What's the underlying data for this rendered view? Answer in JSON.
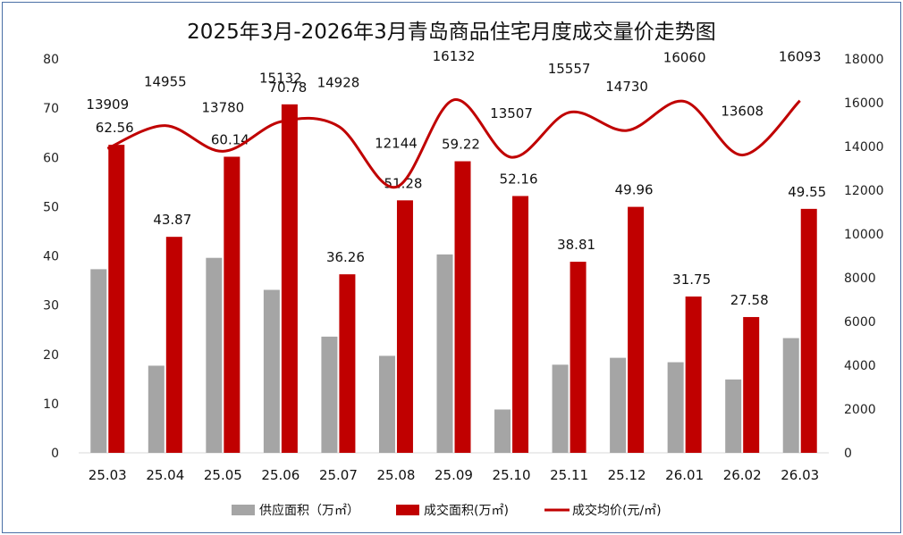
{
  "chart_data": {
    "type": "bar+line",
    "title": "2025年3月-2026年3月青岛商品住宅月度成交量价走势图",
    "categories": [
      "25.03",
      "25.04",
      "25.05",
      "25.06",
      "25.07",
      "25.08",
      "25.09",
      "25.10",
      "25.11",
      "25.12",
      "26.01",
      "26.02",
      "26.03"
    ],
    "series": [
      {
        "name": "供应面积（万㎡）",
        "type": "bar",
        "axis": "left",
        "color": "#a5a5a5",
        "values": [
          37.3,
          17.7,
          39.6,
          33.1,
          23.6,
          19.7,
          40.3,
          8.8,
          17.9,
          19.3,
          18.4,
          14.9,
          23.3
        ]
      },
      {
        "name": "成交面积(万㎡)",
        "type": "bar",
        "axis": "left",
        "color": "#c00000",
        "values": [
          62.56,
          43.87,
          60.14,
          70.78,
          36.26,
          51.28,
          59.22,
          52.16,
          38.81,
          49.96,
          31.75,
          27.58,
          49.55
        ],
        "labels": [
          "62.56",
          "43.87",
          "60.14",
          "70.78",
          "36.26",
          "51.28",
          "59.22",
          "52.16",
          "38.81",
          "49.96",
          "31.75",
          "27.58",
          "49.55"
        ]
      },
      {
        "name": "成交均价(元/㎡)",
        "type": "line",
        "axis": "right",
        "color": "#c00000",
        "values": [
          13909,
          14955,
          13780,
          15132,
          14928,
          12144,
          16132,
          13507,
          15557,
          14730,
          16060,
          13608,
          16093
        ],
        "labels": [
          "13909",
          "14955",
          "13780",
          "15132",
          "14928",
          "12144",
          "16132",
          "13507",
          "15557",
          "14730",
          "16060",
          "13608",
          "16093"
        ]
      }
    ],
    "y_left": {
      "min": 0,
      "max": 80,
      "ticks": [
        "0",
        "10",
        "20",
        "30",
        "40",
        "50",
        "60",
        "70",
        "80"
      ]
    },
    "y_right": {
      "min": 0,
      "max": 18000,
      "ticks": [
        "0",
        "2000",
        "4000",
        "6000",
        "8000",
        "10000",
        "12000",
        "14000",
        "16000",
        "18000"
      ]
    },
    "grid": false,
    "legend_position": "bottom"
  }
}
